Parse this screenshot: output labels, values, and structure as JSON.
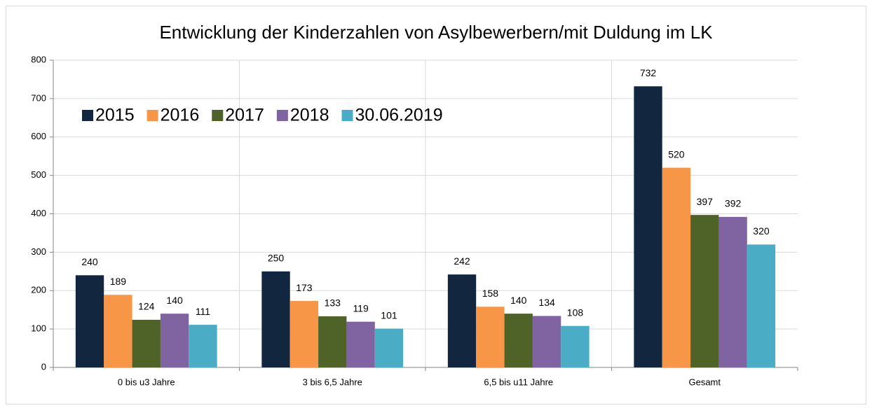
{
  "chart_data": {
    "type": "bar",
    "title": "Entwicklung der Kinderzahlen von Asylbewerbern/mit Duldung im LK",
    "categories": [
      "0 bis u3 Jahre",
      "3 bis 6,5 Jahre",
      "6,5 bis u11 Jahre",
      "Gesamt"
    ],
    "series": [
      {
        "name": "2015",
        "color": "#12263f",
        "values": [
          240,
          250,
          242,
          732
        ]
      },
      {
        "name": "2016",
        "color": "#f79646",
        "values": [
          189,
          173,
          158,
          520
        ]
      },
      {
        "name": "2017",
        "color": "#4f6228",
        "values": [
          124,
          133,
          140,
          397
        ]
      },
      {
        "name": "2018",
        "color": "#8064a2",
        "values": [
          140,
          119,
          134,
          392
        ]
      },
      {
        "name": "30.06.2019",
        "color": "#4bacc6",
        "values": [
          111,
          101,
          108,
          320
        ]
      }
    ],
    "ylim": [
      0,
      800
    ],
    "yticks": [
      0,
      100,
      200,
      300,
      400,
      500,
      600,
      700,
      800
    ],
    "grid": true,
    "legend": "top-left"
  }
}
